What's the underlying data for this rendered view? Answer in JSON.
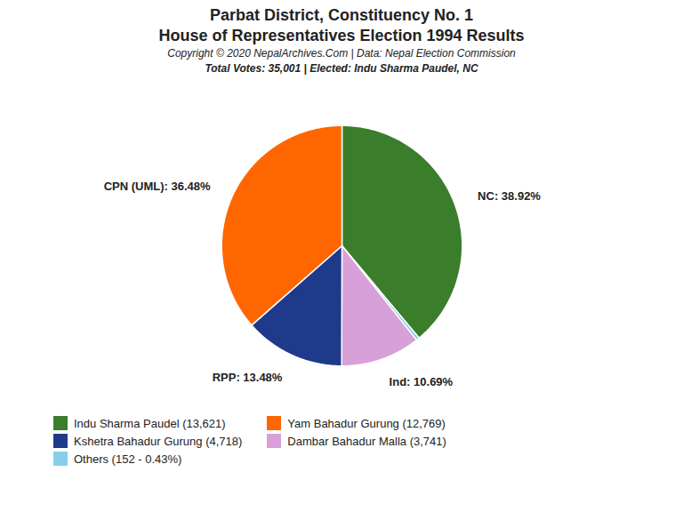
{
  "chart_data": {
    "type": "pie",
    "title": "Parbat District, Constituency No. 1",
    "subtitle": "House of Representatives Election 1994 Results",
    "annotations": [
      "Copyright © 2020 NepalArchives.Com | Data: Nepal Election Commission",
      "Total Votes: 35,001 | Elected: Indu Sharma Paudel, NC"
    ],
    "categories": [
      "NC",
      "Others",
      "Ind",
      "RPP",
      "CPN (UML)"
    ],
    "values": [
      38.92,
      0.43,
      10.69,
      13.48,
      36.48
    ],
    "colors": [
      "#3a7d2a",
      "#87ceeb",
      "#d8a0d8",
      "#1f3a8a",
      "#ff6600"
    ],
    "data_labels": true,
    "value_labels": [
      "NC: 38.92%",
      null,
      "Ind: 10.69%",
      "RPP: 13.48%",
      "CPN (UML): 36.48%"
    ],
    "legend": "lower left",
    "legend_entries": [
      {
        "label": "Indu Sharma Paudel (13,621)",
        "color": "#3a7d2a"
      },
      {
        "label": "Yam Bahadur Gurung (12,769)",
        "color": "#ff6600"
      },
      {
        "label": "Kshetra Bahadur Gurung (4,718)",
        "color": "#1f3a8a"
      },
      {
        "label": "Dambar Bahadur Malla (3,741)",
        "color": "#d8a0d8"
      },
      {
        "label": "Others (152 - 0.43%)",
        "color": "#87ceeb"
      }
    ]
  }
}
